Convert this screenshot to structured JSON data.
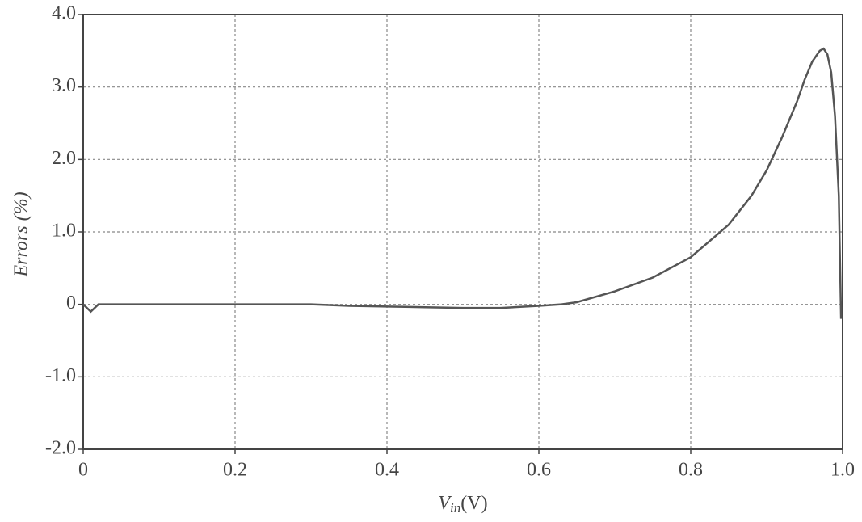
{
  "chart_data": {
    "type": "line",
    "ylabel": "Errors (%)",
    "xlabel": {
      "symbol": "V",
      "subscript": "in",
      "unit": "(V)"
    },
    "x": [
      0,
      0.01,
      0.02,
      0.05,
      0.1,
      0.2,
      0.3,
      0.35,
      0.4,
      0.45,
      0.5,
      0.55,
      0.6,
      0.63,
      0.65,
      0.7,
      0.75,
      0.8,
      0.85,
      0.88,
      0.9,
      0.92,
      0.94,
      0.95,
      0.96,
      0.97,
      0.975,
      0.98,
      0.985,
      0.99,
      0.995,
      0.998
    ],
    "series": [
      {
        "color": "#555555",
        "values": [
          0,
          -0.1,
          0,
          0,
          0,
          0,
          0,
          -0.02,
          -0.03,
          -0.04,
          -0.05,
          -0.05,
          -0.02,
          0,
          0.03,
          0.18,
          0.37,
          0.65,
          1.1,
          1.5,
          1.85,
          2.3,
          2.8,
          3.1,
          3.35,
          3.5,
          3.53,
          3.45,
          3.2,
          2.6,
          1.5,
          -0.2
        ]
      }
    ],
    "xlim": [
      0,
      1
    ],
    "ylim": [
      -2,
      4
    ],
    "xticks": [
      0,
      0.2,
      0.4,
      0.6,
      0.8,
      {
        "value": 1,
        "label": "1.0"
      }
    ],
    "yticks": [
      {
        "value": -2,
        "label": "-2.0"
      },
      {
        "value": -1,
        "label": "-1.0"
      },
      0,
      {
        "value": 1,
        "label": "1.0"
      },
      {
        "value": 2,
        "label": "2.0"
      },
      {
        "value": 3,
        "label": "3.0"
      },
      {
        "value": 4,
        "label": "4.0"
      }
    ],
    "grid": true
  }
}
